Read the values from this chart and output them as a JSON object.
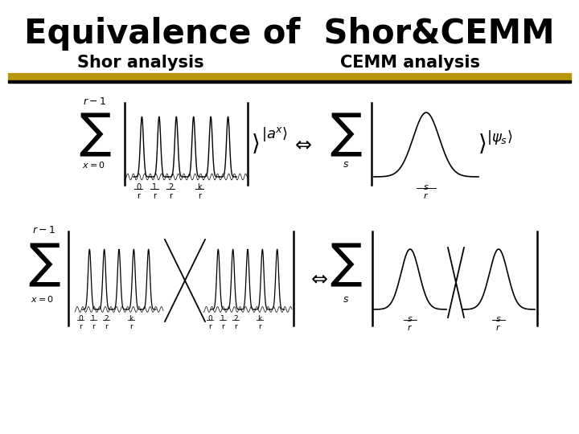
{
  "title": "Equivalence of  Shor&CEMM",
  "subtitle_left": "Shor analysis",
  "subtitle_right": "CEMM analysis",
  "bg_color": "#ffffff",
  "title_color": "#000000",
  "bar_color_gold": "#b8960a",
  "bar_color_black": "#000000",
  "figsize": [
    7.2,
    5.4
  ],
  "dpi": 100
}
